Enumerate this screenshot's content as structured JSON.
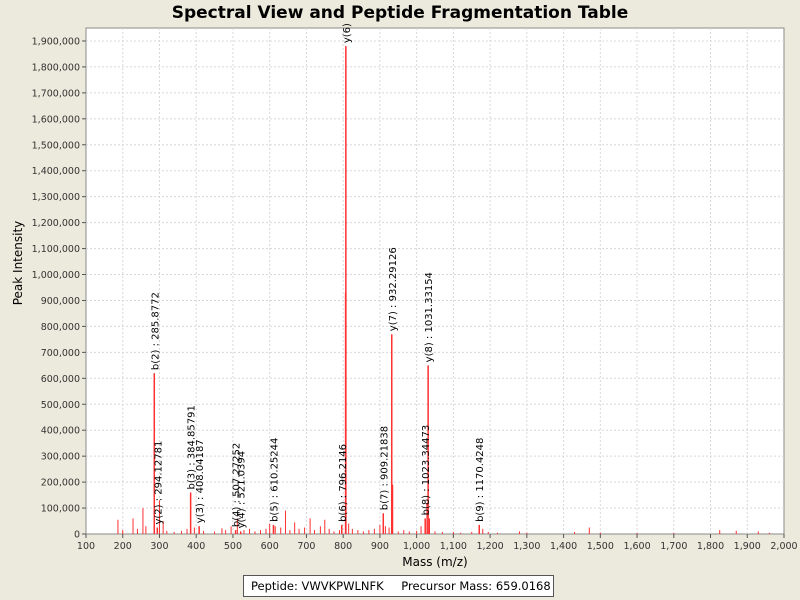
{
  "chart_data": {
    "type": "bar",
    "title": "Spectral View and Peptide Fragmentation Table",
    "xlabel": "Mass (m/z)",
    "ylabel": "Peak Intensity",
    "xlim": [
      100,
      2000
    ],
    "ylim": [
      0,
      1950000
    ],
    "xticks": [
      100,
      200,
      300,
      400,
      500,
      600,
      700,
      800,
      900,
      1000,
      1100,
      1200,
      1300,
      1400,
      1500,
      1600,
      1700,
      1800,
      1900,
      2000
    ],
    "xtick_labels": [
      "100",
      "200",
      "300",
      "400",
      "500",
      "600",
      "700",
      "800",
      "900",
      "1,000",
      "1,100",
      "1,200",
      "1,300",
      "1,400",
      "1,500",
      "1,600",
      "1,700",
      "1,800",
      "1,900",
      "2,000"
    ],
    "yticks": [
      0,
      100000,
      200000,
      300000,
      400000,
      500000,
      600000,
      700000,
      800000,
      900000,
      1000000,
      1100000,
      1200000,
      1300000,
      1400000,
      1500000,
      1600000,
      1700000,
      1800000,
      1900000
    ],
    "ytick_labels": [
      "0",
      "100,000",
      "200,000",
      "300,000",
      "400,000",
      "500,000",
      "600,000",
      "700,000",
      "800,000",
      "900,000",
      "1,000,000",
      "1,100,000",
      "1,200,000",
      "1,300,000",
      "1,400,000",
      "1,500,000",
      "1,600,000",
      "1,700,000",
      "1,800,000",
      "1,900,000"
    ],
    "grid": true,
    "annotated_peaks": [
      {
        "mz": 285.8772,
        "intensity": 620000,
        "label": "b(2) : 285.8772"
      },
      {
        "mz": 294.12781,
        "intensity": 25000,
        "label": "y(2) : 294.12781"
      },
      {
        "mz": 384.85791,
        "intensity": 160000,
        "label": "b(3) : 384.85791"
      },
      {
        "mz": 408.04187,
        "intensity": 30000,
        "label": "y(3) : 408.04187"
      },
      {
        "mz": 507.27252,
        "intensity": 15000,
        "label": "b(4) : 507.27252"
      },
      {
        "mz": 521.0394,
        "intensity": 10000,
        "label": "y(4) : 521.0394"
      },
      {
        "mz": 610.25244,
        "intensity": 35000,
        "label": "b(5) : 610.25244"
      },
      {
        "mz": 796.2146,
        "intensity": 35000,
        "label": "b(6) : 796.2146"
      },
      {
        "mz": 807.37061,
        "intensity": 1880000,
        "label": "y(6)"
      },
      {
        "mz": 909.21838,
        "intensity": 80000,
        "label": "b(7) : 909.21838"
      },
      {
        "mz": 932.29126,
        "intensity": 770000,
        "label": "y(7) : 932.29126"
      },
      {
        "mz": 1023.34473,
        "intensity": 60000,
        "label": "b(8) : 1023.34473"
      },
      {
        "mz": 1031.33154,
        "intensity": 650000,
        "label": "y(8) : 1031.33154"
      },
      {
        "mz": 1170.4248,
        "intensity": 35000,
        "label": "b(9) : 1170.4248"
      }
    ],
    "other_peaks": [
      [
        187,
        55000
      ],
      [
        200,
        15000
      ],
      [
        228,
        60000
      ],
      [
        240,
        20000
      ],
      [
        255,
        100000
      ],
      [
        263,
        30000
      ],
      [
        300,
        130000
      ],
      [
        310,
        50000
      ],
      [
        320,
        12000
      ],
      [
        340,
        8000
      ],
      [
        360,
        12000
      ],
      [
        375,
        20000
      ],
      [
        395,
        25000
      ],
      [
        420,
        12000
      ],
      [
        450,
        10000
      ],
      [
        470,
        22000
      ],
      [
        480,
        15000
      ],
      [
        495,
        30000
      ],
      [
        512,
        60000
      ],
      [
        530,
        15000
      ],
      [
        545,
        20000
      ],
      [
        560,
        10000
      ],
      [
        575,
        15000
      ],
      [
        590,
        20000
      ],
      [
        600,
        40000
      ],
      [
        615,
        30000
      ],
      [
        630,
        25000
      ],
      [
        643,
        90000
      ],
      [
        655,
        15000
      ],
      [
        668,
        45000
      ],
      [
        680,
        20000
      ],
      [
        695,
        25000
      ],
      [
        710,
        60000
      ],
      [
        722,
        15000
      ],
      [
        738,
        30000
      ],
      [
        750,
        55000
      ],
      [
        762,
        20000
      ],
      [
        775,
        10000
      ],
      [
        790,
        15000
      ],
      [
        806,
        930000
      ],
      [
        815,
        40000
      ],
      [
        825,
        20000
      ],
      [
        840,
        15000
      ],
      [
        855,
        10000
      ],
      [
        870,
        15000
      ],
      [
        885,
        20000
      ],
      [
        900,
        35000
      ],
      [
        915,
        30000
      ],
      [
        925,
        25000
      ],
      [
        935,
        190000
      ],
      [
        950,
        10000
      ],
      [
        965,
        15000
      ],
      [
        980,
        10000
      ],
      [
        1000,
        12000
      ],
      [
        1012,
        30000
      ],
      [
        1028,
        120000
      ],
      [
        1035,
        60000
      ],
      [
        1050,
        10000
      ],
      [
        1070,
        8000
      ],
      [
        1100,
        8000
      ],
      [
        1120,
        5000
      ],
      [
        1150,
        8000
      ],
      [
        1180,
        20000
      ],
      [
        1195,
        8000
      ],
      [
        1220,
        5000
      ],
      [
        1280,
        10000
      ],
      [
        1300,
        5000
      ],
      [
        1430,
        8000
      ],
      [
        1470,
        25000
      ],
      [
        1500,
        5000
      ],
      [
        1600,
        4000
      ],
      [
        1700,
        4000
      ],
      [
        1825,
        15000
      ],
      [
        1870,
        12000
      ],
      [
        1930,
        10000
      ],
      [
        1960,
        5000
      ]
    ]
  },
  "info_box": {
    "peptide": "Peptide: VWVKPWLNFK",
    "precursor_mass": "Precursor Mass: 659.0168"
  },
  "colors": {
    "peak": "#ff3030",
    "label_line": "#888888",
    "grid": "#d8d8d8"
  }
}
